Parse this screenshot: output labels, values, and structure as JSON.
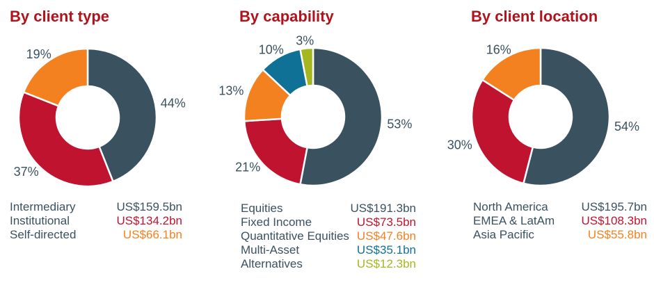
{
  "palette": {
    "slate": "#3a515f",
    "red": "#c01330",
    "orange": "#f3811f",
    "blue": "#0f7196",
    "green": "#a6b61e",
    "title_red": "#b1121b",
    "text": "#3a515f",
    "background": "#ffffff"
  },
  "chart_data": [
    {
      "type": "pie",
      "subtype": "donut",
      "title": "By client type",
      "legend_position": "bottom",
      "slices": [
        {
          "label": "Intermediary",
          "value_label": "US$159.5bn",
          "value_bn": 159.5,
          "pct": 44,
          "pct_label": "44%",
          "color": "slate"
        },
        {
          "label": "Institutional",
          "value_label": "US$134.2bn",
          "value_bn": 134.2,
          "pct": 37,
          "pct_label": "37%",
          "color": "red"
        },
        {
          "label": "Self-directed",
          "value_label": "US$66.1bn",
          "value_bn": 66.1,
          "pct": 19,
          "pct_label": "19%",
          "color": "orange"
        }
      ]
    },
    {
      "type": "pie",
      "subtype": "donut",
      "title": "By capability",
      "legend_position": "bottom",
      "slices": [
        {
          "label": "Equities",
          "value_label": "US$191.3bn",
          "value_bn": 191.3,
          "pct": 53,
          "pct_label": "53%",
          "color": "slate"
        },
        {
          "label": "Fixed Income",
          "value_label": "US$73.5bn",
          "value_bn": 73.5,
          "pct": 21,
          "pct_label": "21%",
          "color": "red"
        },
        {
          "label": "Quantitative Equities",
          "value_label": "US$47.6bn",
          "value_bn": 47.6,
          "pct": 13,
          "pct_label": "13%",
          "color": "orange"
        },
        {
          "label": "Multi-Asset",
          "value_label": "US$35.1bn",
          "value_bn": 35.1,
          "pct": 10,
          "pct_label": "10%",
          "color": "blue"
        },
        {
          "label": "Alternatives",
          "value_label": "US$12.3bn",
          "value_bn": 12.3,
          "pct": 3,
          "pct_label": "3%",
          "color": "green"
        }
      ]
    },
    {
      "type": "pie",
      "subtype": "donut",
      "title": "By client location",
      "legend_position": "bottom",
      "slices": [
        {
          "label": "North America",
          "value_label": "US$195.7bn",
          "value_bn": 195.7,
          "pct": 54,
          "pct_label": "54%",
          "color": "slate"
        },
        {
          "label": "EMEA & LatAm",
          "value_label": "US$108.3bn",
          "value_bn": 108.3,
          "pct": 30,
          "pct_label": "30%",
          "color": "red"
        },
        {
          "label": "Asia Pacific",
          "value_label": "US$55.8bn",
          "value_bn": 55.8,
          "pct": 16,
          "pct_label": "16%",
          "color": "orange"
        }
      ]
    }
  ]
}
